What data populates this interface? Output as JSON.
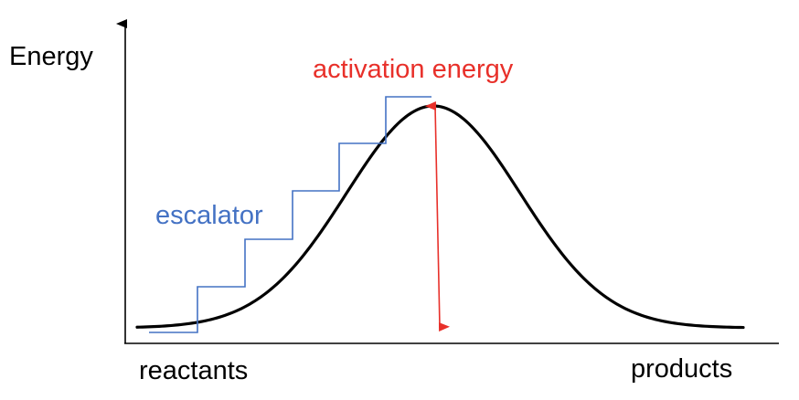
{
  "labels": {
    "y_axis": "Energy",
    "activation": "activation energy",
    "escalator": "escalator",
    "x_start": "reactants",
    "x_end": "products"
  },
  "colors": {
    "curve": "#000000",
    "axis": "#000000",
    "activation": "#e8302a",
    "escalator": "#4472c4"
  },
  "icons": {
    "y_axis_arrow": "arrow-up-icon",
    "activation_arrow": "double-headed-arrow-icon"
  }
}
